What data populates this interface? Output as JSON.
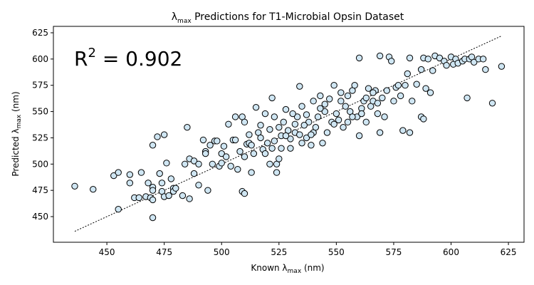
{
  "chart_data": {
    "type": "scatter",
    "title": {
      "symbol": "λ",
      "subscript": "max",
      "text": " Predictions for T1-Microbial Opsin Dataset"
    },
    "x_label": {
      "text": "Known λ",
      "subscript": "max",
      "unit": " (nm)"
    },
    "y_label": {
      "text": "Predicted λ",
      "subscript": "max",
      "unit": " (nm)"
    },
    "annotation": {
      "symbol": "R",
      "superscript": "2",
      "text": " = 0.902"
    },
    "xlim": [
      426.7,
      631.8
    ],
    "ylim": [
      425.6,
      631.1
    ],
    "xticks": [
      450,
      475,
      500,
      525,
      550,
      575,
      600,
      625
    ],
    "yticks": [
      450,
      475,
      500,
      525,
      550,
      575,
      600,
      625
    ],
    "color": "#cfe6f3",
    "edge_color": "#000000",
    "reference_line": {
      "x": [
        436,
        622
      ],
      "values": [
        436,
        622
      ]
    },
    "x": [
      436,
      444,
      453,
      455,
      455,
      460,
      460,
      462,
      464,
      465,
      467,
      468,
      469,
      470,
      470,
      470,
      470,
      470,
      472,
      473,
      474,
      474,
      475,
      475,
      476,
      477,
      478,
      479,
      479,
      480,
      483,
      484,
      485,
      486,
      486,
      488,
      488,
      490,
      490,
      492,
      493,
      493,
      494,
      495,
      496,
      497,
      498,
      499,
      500,
      500,
      501,
      502,
      503,
      504,
      505,
      506,
      506,
      507,
      508,
      509,
      509,
      510,
      510,
      510,
      511,
      512,
      512,
      513,
      514,
      515,
      516,
      517,
      518,
      519,
      520,
      521,
      522,
      522,
      523,
      524,
      524,
      525,
      525,
      526,
      528,
      530,
      530,
      532,
      533,
      534,
      535,
      535,
      537,
      538,
      540,
      540,
      542,
      543,
      544,
      545,
      546,
      548,
      549,
      550,
      552,
      553,
      555,
      556,
      557,
      558,
      559,
      560,
      560,
      561,
      562,
      563,
      564,
      565,
      566,
      567,
      568,
      569,
      569,
      570,
      571,
      572,
      573,
      574,
      575,
      576,
      577,
      578,
      579,
      580,
      581,
      582,
      582,
      583,
      585,
      587,
      587,
      588,
      588,
      589,
      590,
      591,
      592,
      593,
      595,
      597,
      598,
      600,
      601,
      602,
      603,
      605,
      606,
      607,
      608,
      609,
      610,
      612,
      614,
      615,
      618,
      622,
      527,
      529,
      531,
      536,
      539,
      541,
      543,
      547,
      551,
      554,
      557,
      561,
      563,
      566,
      568,
      513,
      517,
      519,
      521,
      523,
      526,
      528,
      532,
      534,
      537,
      539,
      545,
      549,
      552,
      555
    ],
    "values": [
      479,
      476,
      489,
      492,
      457,
      490,
      482,
      468,
      468,
      492,
      469,
      482,
      468,
      518,
      478,
      475,
      466,
      449,
      526,
      491,
      482,
      474,
      528,
      469,
      501,
      470,
      486,
      477,
      474,
      477,
      470,
      500,
      535,
      505,
      467,
      491,
      503,
      500,
      480,
      523,
      512,
      510,
      475,
      518,
      500,
      522,
      522,
      498,
      510,
      501,
      517,
      507,
      538,
      498,
      523,
      523,
      545,
      495,
      512,
      474,
      545,
      472,
      507,
      540,
      519,
      520,
      528,
      492,
      510,
      554,
      530,
      537,
      514,
      548,
      520,
      500,
      515,
      563,
      545,
      500,
      492,
      505,
      535,
      527,
      552,
      515,
      524,
      530,
      545,
      574,
      520,
      555,
      525,
      540,
      560,
      530,
      545,
      565,
      520,
      550,
      530,
      540,
      575,
      548,
      560,
      535,
      565,
      550,
      570,
      575,
      545,
      527,
      601,
      553,
      560,
      540,
      572,
      555,
      560,
      570,
      548,
      603,
      530,
      563,
      545,
      570,
      602,
      598,
      560,
      573,
      575,
      565,
      532,
      575,
      586,
      530,
      601,
      560,
      576,
      590,
      545,
      543,
      601,
      572,
      600,
      568,
      589,
      603,
      601,
      598,
      594,
      602,
      595,
      600,
      596,
      598,
      600,
      563,
      600,
      602,
      597,
      600,
      600,
      590,
      558,
      593,
      540,
      532,
      548,
      537,
      528,
      535,
      553,
      562,
      542,
      555,
      545,
      548,
      563,
      568,
      558,
      518,
      525,
      510,
      533,
      522,
      515,
      527,
      538,
      528,
      547,
      518,
      557,
      538,
      568,
      540
    ]
  }
}
